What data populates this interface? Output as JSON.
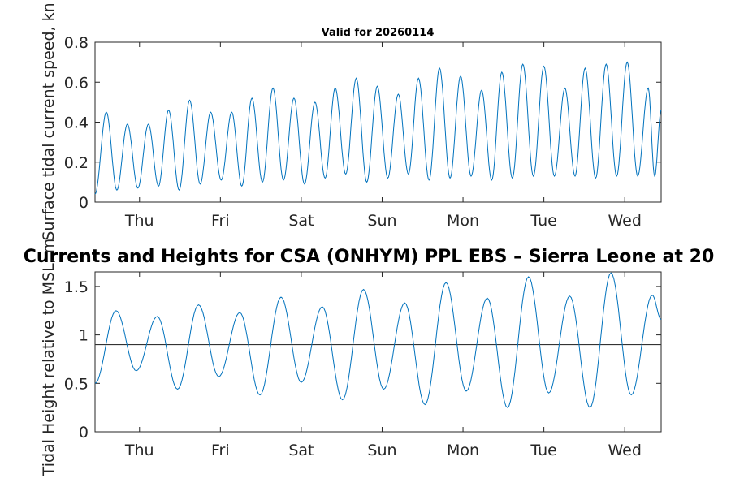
{
  "chart_data": [
    {
      "type": "line",
      "title": "Valid for 20260114",
      "xlabel": "",
      "ylabel": "Surface tidal current speed, kn",
      "ylim": [
        0,
        0.8
      ],
      "yticks": [
        "0",
        "0.2",
        "0.4",
        "0.6",
        "0.8"
      ],
      "xlim_days": [
        0,
        7
      ],
      "xtick_positions_days": [
        0.55,
        1.55,
        2.55,
        3.55,
        4.55,
        5.55,
        6.55
      ],
      "xtick_labels": [
        "Thu",
        "Fri",
        "Sat",
        "Sun",
        "Mon",
        "Tue",
        "Wed"
      ],
      "line_color": "#0072bd",
      "series": [
        {
          "name": "current speed",
          "x": [
            0.0,
            0.14,
            0.4,
            0.66,
            0.91,
            1.17,
            1.43,
            1.69,
            1.94,
            2.2,
            2.46,
            2.72,
            2.97,
            3.23,
            3.49,
            3.75,
            4.0,
            4.26,
            4.52,
            4.78,
            5.03,
            5.29,
            5.55,
            5.81,
            6.06,
            6.32,
            6.58,
            6.84,
            7.0
          ],
          "values": [
            0.04,
            0.45,
            0.39,
            0.39,
            0.46,
            0.51,
            0.45,
            0.45,
            0.52,
            0.57,
            0.52,
            0.5,
            0.57,
            0.62,
            0.58,
            0.54,
            0.62,
            0.67,
            0.63,
            0.56,
            0.65,
            0.69,
            0.68,
            0.57,
            0.67,
            0.69,
            0.7,
            0.57,
            0.46
          ],
          "minima": [
            0.06,
            0.07,
            0.08,
            0.06,
            0.09,
            0.11,
            0.08,
            0.1,
            0.11,
            0.09,
            0.12,
            0.14,
            0.1,
            0.12,
            0.14,
            0.11,
            0.12,
            0.13,
            0.11,
            0.12,
            0.13,
            0.13,
            0.13,
            0.12,
            0.13,
            0.13,
            0.13
          ]
        }
      ]
    },
    {
      "type": "line",
      "title": "Currents and Heights for CSA (ONHYM) PPL EBS  – Sierra Leone at 20",
      "xlabel": "",
      "ylabel": "Tidal Height relative to MSL, m",
      "ylim": [
        0,
        1.65
      ],
      "yticks": [
        "0",
        "0.5",
        "1",
        "1.5"
      ],
      "xlim_days": [
        0,
        7
      ],
      "xtick_positions_days": [
        0.55,
        1.55,
        2.55,
        3.55,
        4.55,
        5.55,
        6.55
      ],
      "xtick_labels": [
        "Thu",
        "Fri",
        "Sat",
        "Sun",
        "Mon",
        "Tue",
        "Wed"
      ],
      "reference_line": {
        "value": 0.9,
        "color": "#333333"
      },
      "line_color": "#0072bd",
      "series": [
        {
          "name": "tidal height",
          "x": [
            0.0,
            0.26,
            0.51,
            0.77,
            1.02,
            1.28,
            1.53,
            1.79,
            2.04,
            2.3,
            2.55,
            2.81,
            3.06,
            3.32,
            3.57,
            3.83,
            4.08,
            4.34,
            4.59,
            4.85,
            5.1,
            5.36,
            5.61,
            5.87,
            6.12,
            6.38,
            6.63,
            6.89,
            7.0
          ],
          "values": [
            0.5,
            1.25,
            0.63,
            1.19,
            0.44,
            1.31,
            0.57,
            1.23,
            0.38,
            1.39,
            0.51,
            1.29,
            0.33,
            1.47,
            0.44,
            1.33,
            0.28,
            1.54,
            0.42,
            1.38,
            0.25,
            1.6,
            0.4,
            1.4,
            0.25,
            1.64,
            0.38,
            1.41,
            1.16
          ]
        }
      ]
    }
  ]
}
